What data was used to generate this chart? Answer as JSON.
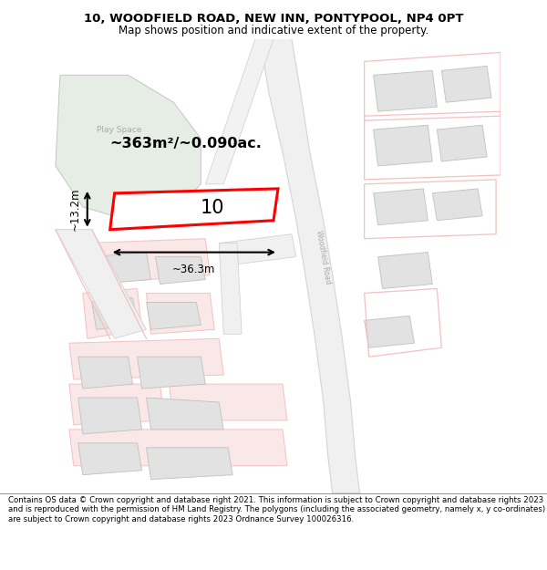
{
  "title_line1": "10, WOODFIELD ROAD, NEW INN, PONTYPOOL, NP4 0PT",
  "title_line2": "Map shows position and indicative extent of the property.",
  "footer_text": "Contains OS data © Crown copyright and database right 2021. This information is subject to Crown copyright and database rights 2023 and is reproduced with the permission of HM Land Registry. The polygons (including the associated geometry, namely x, y co-ordinates) are subject to Crown copyright and database rights 2023 Ordnance Survey 100026316.",
  "area_label": "~363m²/~0.090ac.",
  "house_number": "10",
  "width_label": "~36.3m",
  "height_label": "~13.2m",
  "map_bg": "#f7f7f7",
  "road_color": "#ebebeb",
  "road_outline": "#cccccc",
  "plot_color": "#ffffff",
  "plot_outline": "#ff0000",
  "green_area_color": "#e5ede5",
  "green_area_outline": "#c5c5c5",
  "building_color": "#e2e2e2",
  "building_outline": "#c0c0c0",
  "pink_line_color": "#f5c0c0",
  "pink_fill_color": "#fae8e8"
}
